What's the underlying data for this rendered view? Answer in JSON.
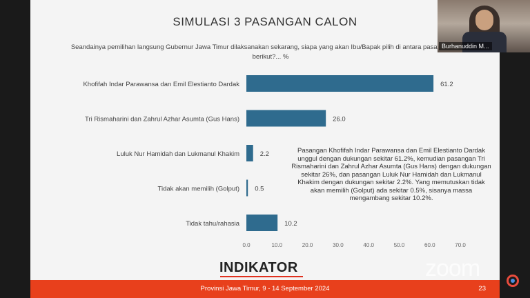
{
  "slide": {
    "title": "SIMULASI 3 PASANGAN CALON",
    "question": "Seandainya pemilihan langsung Gubernur Jawa Timur dilaksanakan sekarang, siapa yang akan Ibu/Bapak pilih di antara pasangan nama berikut?... %",
    "note": "Pasangan Khofifah Indar Parawansa dan Emil Elestianto Dardak unggul dengan dukungan sekitar 61.2%, kemudian pasangan Tri Rismaharini dan Zahrul Azhar Asumta (Gus Hans) dengan dukungan sekitar 26%, dan pasangan Luluk Nur Hamidah dan Lukmanul Khakim dengan dukungan sekitar 2.2%. Yang memutuskan tidak akan memilih (Golput) ada sekitar 0.5%, sisanya massa mengambang sekitar 10.2%.",
    "logo": "INDIKATOR",
    "footer": "Provinsi Jawa Timur, 9 - 14 September 2024",
    "page_number": "23",
    "bar_color": "#2f6b8e"
  },
  "video": {
    "participant_name": "Burhanuddin M..."
  },
  "overlay": {
    "watermark": "zoom"
  },
  "chart_data": {
    "type": "bar",
    "orientation": "horizontal",
    "categories": [
      "Khofifah Indar Parawansa dan Emil Elestianto Dardak",
      "Tri Rismaharini dan Zahrul Azhar Asumta (Gus Hans)",
      "Luluk Nur Hamidah dan Lukmanul Khakim",
      "Tidak akan memilih (Golput)",
      "Tidak tahu/rahasia"
    ],
    "values": [
      61.2,
      26.0,
      2.2,
      0.5,
      10.2
    ],
    "value_labels": [
      "61.2",
      "26.0",
      "2.2",
      "0.5",
      "10.2"
    ],
    "xlim": [
      0,
      70
    ],
    "xticks": [
      "0.0",
      "10.0",
      "20.0",
      "30.0",
      "40.0",
      "50.0",
      "60.0",
      "70.0"
    ],
    "grid": false,
    "legend": "none"
  }
}
